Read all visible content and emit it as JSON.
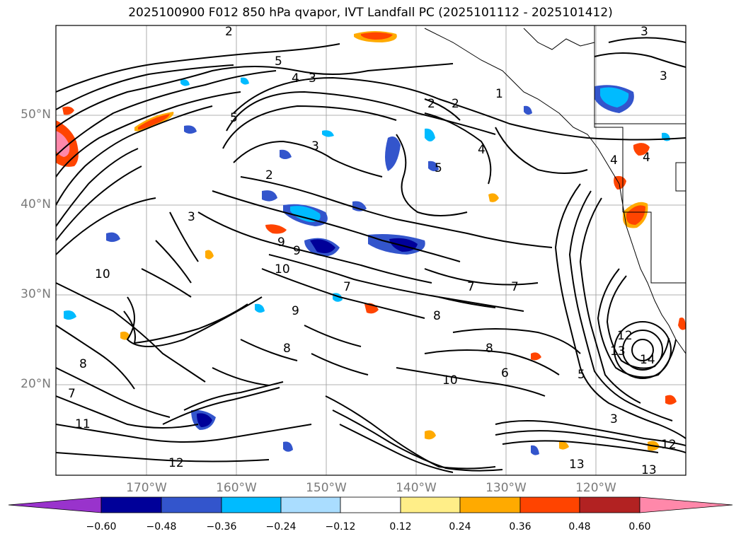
{
  "title": "2025100900 F012 850 hPa qvapor, IVT Landfall PC (2025101112 - 2025101412)",
  "lat_labels": [
    "50°N",
    "40°N",
    "30°N",
    "20°N"
  ],
  "lon_labels": [
    "170°W",
    "160°W",
    "150°W",
    "140°W",
    "130°W",
    "120°W"
  ],
  "colorbar": {
    "ticks": [
      "−0.60",
      "−0.48",
      "−0.36",
      "−0.24",
      "−0.12",
      "0.12",
      "0.24",
      "0.36",
      "0.48",
      "0.60"
    ],
    "colors": [
      "#9933cc",
      "#000099",
      "#3355cc",
      "#00bbff",
      "#aaddff",
      "#ffffff",
      "#ffee88",
      "#ffaa00",
      "#ff4400",
      "#b22222",
      "#ff88aa"
    ]
  },
  "contour_labels": [
    {
      "t": "2"
    },
    {
      "t": "3"
    },
    {
      "t": "3"
    },
    {
      "t": "4"
    },
    {
      "t": "3"
    },
    {
      "t": "5"
    },
    {
      "t": "2"
    },
    {
      "t": "2"
    },
    {
      "t": "1"
    },
    {
      "t": "3"
    },
    {
      "t": "2"
    },
    {
      "t": "5"
    },
    {
      "t": "3"
    },
    {
      "t": "4"
    },
    {
      "t": "5"
    },
    {
      "t": "4"
    },
    {
      "t": "4"
    },
    {
      "t": "9"
    },
    {
      "t": "9"
    },
    {
      "t": "10"
    },
    {
      "t": "10"
    },
    {
      "t": "7"
    },
    {
      "t": "8"
    },
    {
      "t": "7"
    },
    {
      "t": "7"
    },
    {
      "t": "8"
    },
    {
      "t": "9"
    },
    {
      "t": "8"
    },
    {
      "t": "10"
    },
    {
      "t": "6"
    },
    {
      "t": "12"
    },
    {
      "t": "13"
    },
    {
      "t": "14"
    },
    {
      "t": "11"
    },
    {
      "t": "12"
    },
    {
      "t": "13"
    },
    {
      "t": "13"
    },
    {
      "t": "12"
    },
    {
      "t": "8"
    },
    {
      "t": "7"
    },
    {
      "t": "3"
    },
    {
      "t": "5"
    }
  ]
}
